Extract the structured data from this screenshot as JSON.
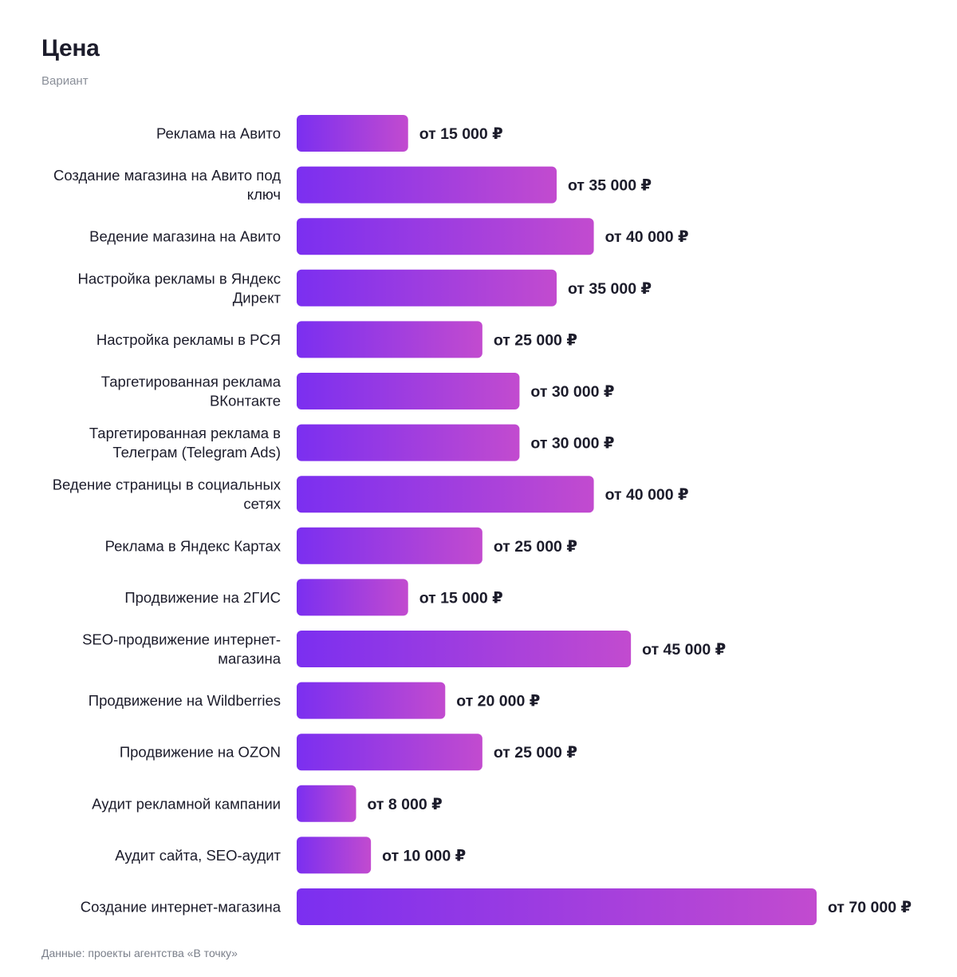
{
  "chart_data": {
    "type": "bar",
    "orientation": "horizontal",
    "title": "Цена",
    "subtitle": "Вариант",
    "source": "Данные: проекты агентства «В точку»",
    "value_prefix": "от",
    "currency": "₽",
    "categories": [
      [
        "Реклама на Авито"
      ],
      [
        "Создание магазина на Авито под",
        "ключ"
      ],
      [
        "Ведение магазина на Авито"
      ],
      [
        "Настройка рекламы в Яндекс",
        "Директ"
      ],
      [
        "Настройка рекламы в РСЯ"
      ],
      [
        "Таргетированная реклама",
        "ВКонтакте"
      ],
      [
        "Таргетированная реклама в",
        "Телеграм (Telegram Ads)"
      ],
      [
        "Ведение страницы в социальных",
        "сетях"
      ],
      [
        "Реклама в Яндекс Картах"
      ],
      [
        "Продвижение на 2ГИС"
      ],
      [
        "SEO-продвижение интернет-",
        "магазина"
      ],
      [
        "Продвижение на Wildberries"
      ],
      [
        "Продвижение на OZON"
      ],
      [
        "Аудит рекламной кампании"
      ],
      [
        "Аудит сайта, SEO-аудит"
      ],
      [
        "Создание интернет-магазина"
      ]
    ],
    "values": [
      15000,
      35000,
      40000,
      35000,
      25000,
      30000,
      30000,
      40000,
      25000,
      15000,
      45000,
      20000,
      25000,
      8000,
      10000,
      70000
    ],
    "value_labels": [
      "от 15 000",
      "от 35 000",
      "от 40 000",
      "от 35 000",
      "от 25 000",
      "от 30 000",
      "от 30 000",
      "от 40 000",
      "от 25 000",
      "от 15 000",
      "от 45 000",
      "от 20 000",
      "от 25 000",
      "от 8 000",
      "от 10 000",
      "от 70 000"
    ],
    "xlim": [
      0,
      70000
    ],
    "grid": false,
    "legend": "none",
    "colors": {
      "bar_start": "#7b2ff0",
      "bar_end": "#c24bcf",
      "text": "#1c1c2b",
      "muted": "#8a8f99"
    }
  }
}
